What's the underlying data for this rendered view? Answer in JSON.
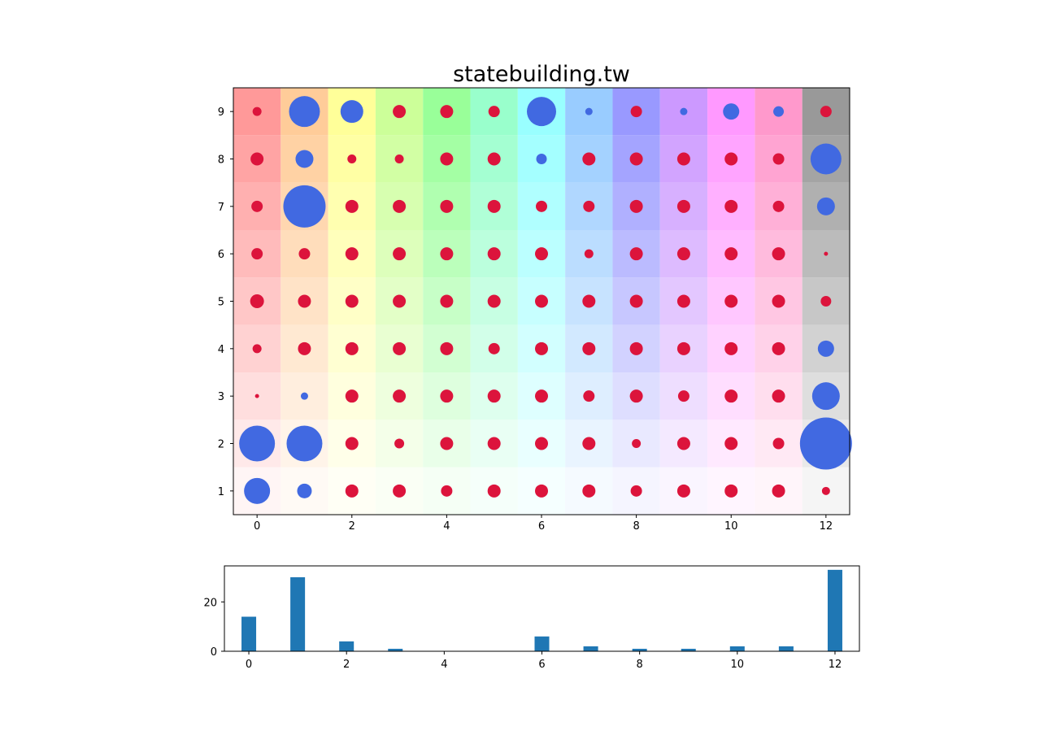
{
  "chart_data": [
    {
      "type": "scatter",
      "title": "statebuilding.tw",
      "xlabel": "",
      "ylabel": "",
      "xlim": [
        -0.5,
        12.5
      ],
      "ylim": [
        0.5,
        9.5
      ],
      "xticks": [
        0,
        2,
        4,
        6,
        8,
        10,
        12
      ],
      "yticks": [
        1,
        2,
        3,
        4,
        5,
        6,
        7,
        8,
        9
      ],
      "grid": false,
      "background_hues": [
        "#ff0000",
        "#ff7f00",
        "#ffff00",
        "#7fff00",
        "#00ff00",
        "#00ff7f",
        "#00ffff",
        "#007fff",
        "#0000ff",
        "#7f00ff",
        "#ff00ff",
        "#ff007f",
        "#000000"
      ],
      "colors": {
        "positive": "#dc143c",
        "negative": "#4169e1"
      },
      "points": [
        {
          "x": 0,
          "y": 1,
          "size": 16,
          "sign": "negative"
        },
        {
          "x": 1,
          "y": 1,
          "size": 9,
          "sign": "negative"
        },
        {
          "x": 2,
          "y": 1,
          "size": 8,
          "sign": "positive"
        },
        {
          "x": 3,
          "y": 1,
          "size": 8,
          "sign": "positive"
        },
        {
          "x": 4,
          "y": 1,
          "size": 7,
          "sign": "positive"
        },
        {
          "x": 5,
          "y": 1,
          "size": 8,
          "sign": "positive"
        },
        {
          "x": 6,
          "y": 1,
          "size": 8,
          "sign": "positive"
        },
        {
          "x": 7,
          "y": 1,
          "size": 8,
          "sign": "positive"
        },
        {
          "x": 8,
          "y": 1,
          "size": 7,
          "sign": "positive"
        },
        {
          "x": 9,
          "y": 1,
          "size": 8,
          "sign": "positive"
        },
        {
          "x": 10,
          "y": 1,
          "size": 8,
          "sign": "positive"
        },
        {
          "x": 11,
          "y": 1,
          "size": 8,
          "sign": "positive"
        },
        {
          "x": 12,
          "y": 1,
          "size": 5,
          "sign": "positive"
        },
        {
          "x": 0,
          "y": 2,
          "size": 22,
          "sign": "negative"
        },
        {
          "x": 1,
          "y": 2,
          "size": 22,
          "sign": "negative"
        },
        {
          "x": 2,
          "y": 2,
          "size": 8,
          "sign": "positive"
        },
        {
          "x": 3,
          "y": 2,
          "size": 6,
          "sign": "positive"
        },
        {
          "x": 4,
          "y": 2,
          "size": 8,
          "sign": "positive"
        },
        {
          "x": 5,
          "y": 2,
          "size": 8,
          "sign": "positive"
        },
        {
          "x": 6,
          "y": 2,
          "size": 8,
          "sign": "positive"
        },
        {
          "x": 7,
          "y": 2,
          "size": 8,
          "sign": "positive"
        },
        {
          "x": 8,
          "y": 2,
          "size": 5.5,
          "sign": "positive"
        },
        {
          "x": 9,
          "y": 2,
          "size": 8,
          "sign": "positive"
        },
        {
          "x": 10,
          "y": 2,
          "size": 8,
          "sign": "positive"
        },
        {
          "x": 11,
          "y": 2,
          "size": 7,
          "sign": "positive"
        },
        {
          "x": 12,
          "y": 2,
          "size": 32,
          "sign": "negative"
        },
        {
          "x": 0,
          "y": 3,
          "size": 2.5,
          "sign": "positive"
        },
        {
          "x": 1,
          "y": 3,
          "size": 4.5,
          "sign": "negative"
        },
        {
          "x": 2,
          "y": 3,
          "size": 8,
          "sign": "positive"
        },
        {
          "x": 3,
          "y": 3,
          "size": 8,
          "sign": "positive"
        },
        {
          "x": 4,
          "y": 3,
          "size": 8,
          "sign": "positive"
        },
        {
          "x": 5,
          "y": 3,
          "size": 8,
          "sign": "positive"
        },
        {
          "x": 6,
          "y": 3,
          "size": 8,
          "sign": "positive"
        },
        {
          "x": 7,
          "y": 3,
          "size": 7,
          "sign": "positive"
        },
        {
          "x": 8,
          "y": 3,
          "size": 8,
          "sign": "positive"
        },
        {
          "x": 9,
          "y": 3,
          "size": 7,
          "sign": "positive"
        },
        {
          "x": 10,
          "y": 3,
          "size": 8,
          "sign": "positive"
        },
        {
          "x": 11,
          "y": 3,
          "size": 8,
          "sign": "positive"
        },
        {
          "x": 12,
          "y": 3,
          "size": 17,
          "sign": "negative"
        },
        {
          "x": 0,
          "y": 4,
          "size": 5.5,
          "sign": "positive"
        },
        {
          "x": 1,
          "y": 4,
          "size": 8,
          "sign": "positive"
        },
        {
          "x": 2,
          "y": 4,
          "size": 8,
          "sign": "positive"
        },
        {
          "x": 3,
          "y": 4,
          "size": 8,
          "sign": "positive"
        },
        {
          "x": 4,
          "y": 4,
          "size": 8,
          "sign": "positive"
        },
        {
          "x": 5,
          "y": 4,
          "size": 7,
          "sign": "positive"
        },
        {
          "x": 6,
          "y": 4,
          "size": 8,
          "sign": "positive"
        },
        {
          "x": 7,
          "y": 4,
          "size": 8,
          "sign": "positive"
        },
        {
          "x": 8,
          "y": 4,
          "size": 8,
          "sign": "positive"
        },
        {
          "x": 9,
          "y": 4,
          "size": 8,
          "sign": "positive"
        },
        {
          "x": 10,
          "y": 4,
          "size": 8,
          "sign": "positive"
        },
        {
          "x": 11,
          "y": 4,
          "size": 8,
          "sign": "positive"
        },
        {
          "x": 12,
          "y": 4,
          "size": 10,
          "sign": "negative"
        },
        {
          "x": 0,
          "y": 5,
          "size": 8.5,
          "sign": "positive"
        },
        {
          "x": 1,
          "y": 5,
          "size": 8,
          "sign": "positive"
        },
        {
          "x": 2,
          "y": 5,
          "size": 8,
          "sign": "positive"
        },
        {
          "x": 3,
          "y": 5,
          "size": 8,
          "sign": "positive"
        },
        {
          "x": 4,
          "y": 5,
          "size": 8,
          "sign": "positive"
        },
        {
          "x": 5,
          "y": 5,
          "size": 8,
          "sign": "positive"
        },
        {
          "x": 6,
          "y": 5,
          "size": 8,
          "sign": "positive"
        },
        {
          "x": 7,
          "y": 5,
          "size": 8,
          "sign": "positive"
        },
        {
          "x": 8,
          "y": 5,
          "size": 8,
          "sign": "positive"
        },
        {
          "x": 9,
          "y": 5,
          "size": 8,
          "sign": "positive"
        },
        {
          "x": 10,
          "y": 5,
          "size": 8,
          "sign": "positive"
        },
        {
          "x": 11,
          "y": 5,
          "size": 8,
          "sign": "positive"
        },
        {
          "x": 12,
          "y": 5,
          "size": 6.5,
          "sign": "positive"
        },
        {
          "x": 0,
          "y": 6,
          "size": 7,
          "sign": "positive"
        },
        {
          "x": 1,
          "y": 6,
          "size": 7,
          "sign": "positive"
        },
        {
          "x": 2,
          "y": 6,
          "size": 8,
          "sign": "positive"
        },
        {
          "x": 3,
          "y": 6,
          "size": 8,
          "sign": "positive"
        },
        {
          "x": 4,
          "y": 6,
          "size": 8,
          "sign": "positive"
        },
        {
          "x": 5,
          "y": 6,
          "size": 8,
          "sign": "positive"
        },
        {
          "x": 6,
          "y": 6,
          "size": 8,
          "sign": "positive"
        },
        {
          "x": 7,
          "y": 6,
          "size": 5.5,
          "sign": "positive"
        },
        {
          "x": 8,
          "y": 6,
          "size": 8,
          "sign": "positive"
        },
        {
          "x": 9,
          "y": 6,
          "size": 8,
          "sign": "positive"
        },
        {
          "x": 10,
          "y": 6,
          "size": 8,
          "sign": "positive"
        },
        {
          "x": 11,
          "y": 6,
          "size": 8,
          "sign": "positive"
        },
        {
          "x": 12,
          "y": 6,
          "size": 2.5,
          "sign": "positive"
        },
        {
          "x": 0,
          "y": 7,
          "size": 7,
          "sign": "positive"
        },
        {
          "x": 1,
          "y": 7,
          "size": 26,
          "sign": "negative"
        },
        {
          "x": 2,
          "y": 7,
          "size": 8,
          "sign": "positive"
        },
        {
          "x": 3,
          "y": 7,
          "size": 8,
          "sign": "positive"
        },
        {
          "x": 4,
          "y": 7,
          "size": 8,
          "sign": "positive"
        },
        {
          "x": 5,
          "y": 7,
          "size": 8,
          "sign": "positive"
        },
        {
          "x": 6,
          "y": 7,
          "size": 7,
          "sign": "positive"
        },
        {
          "x": 7,
          "y": 7,
          "size": 7,
          "sign": "positive"
        },
        {
          "x": 8,
          "y": 7,
          "size": 8,
          "sign": "positive"
        },
        {
          "x": 9,
          "y": 7,
          "size": 8,
          "sign": "positive"
        },
        {
          "x": 10,
          "y": 7,
          "size": 8,
          "sign": "positive"
        },
        {
          "x": 11,
          "y": 7,
          "size": 7,
          "sign": "positive"
        },
        {
          "x": 12,
          "y": 7,
          "size": 11,
          "sign": "negative"
        },
        {
          "x": 0,
          "y": 8,
          "size": 8,
          "sign": "positive"
        },
        {
          "x": 1,
          "y": 8,
          "size": 11,
          "sign": "negative"
        },
        {
          "x": 2,
          "y": 8,
          "size": 5.5,
          "sign": "positive"
        },
        {
          "x": 3,
          "y": 8,
          "size": 5.5,
          "sign": "positive"
        },
        {
          "x": 4,
          "y": 8,
          "size": 8,
          "sign": "positive"
        },
        {
          "x": 5,
          "y": 8,
          "size": 8,
          "sign": "positive"
        },
        {
          "x": 6,
          "y": 8,
          "size": 6.5,
          "sign": "negative"
        },
        {
          "x": 7,
          "y": 8,
          "size": 8,
          "sign": "positive"
        },
        {
          "x": 8,
          "y": 8,
          "size": 8,
          "sign": "positive"
        },
        {
          "x": 9,
          "y": 8,
          "size": 8,
          "sign": "positive"
        },
        {
          "x": 10,
          "y": 8,
          "size": 8,
          "sign": "positive"
        },
        {
          "x": 11,
          "y": 8,
          "size": 7,
          "sign": "positive"
        },
        {
          "x": 12,
          "y": 8,
          "size": 19,
          "sign": "negative"
        },
        {
          "x": 0,
          "y": 9,
          "size": 5.5,
          "sign": "positive"
        },
        {
          "x": 1,
          "y": 9,
          "size": 19,
          "sign": "negative"
        },
        {
          "x": 2,
          "y": 9,
          "size": 14,
          "sign": "negative"
        },
        {
          "x": 3,
          "y": 9,
          "size": 8,
          "sign": "positive"
        },
        {
          "x": 4,
          "y": 9,
          "size": 8,
          "sign": "positive"
        },
        {
          "x": 5,
          "y": 9,
          "size": 7,
          "sign": "positive"
        },
        {
          "x": 6,
          "y": 9,
          "size": 18,
          "sign": "negative"
        },
        {
          "x": 7,
          "y": 9,
          "size": 4.5,
          "sign": "negative"
        },
        {
          "x": 8,
          "y": 9,
          "size": 7,
          "sign": "positive"
        },
        {
          "x": 9,
          "y": 9,
          "size": 4.5,
          "sign": "negative"
        },
        {
          "x": 10,
          "y": 9,
          "size": 10,
          "sign": "negative"
        },
        {
          "x": 11,
          "y": 9,
          "size": 6.5,
          "sign": "negative"
        },
        {
          "x": 12,
          "y": 9,
          "size": 7,
          "sign": "positive"
        }
      ]
    },
    {
      "type": "bar",
      "title": "",
      "xlabel": "",
      "ylabel": "",
      "x": [
        0,
        1,
        2,
        3,
        4,
        5,
        6,
        7,
        8,
        9,
        10,
        11,
        12
      ],
      "values": [
        14,
        30,
        4,
        1,
        0,
        0,
        6,
        2,
        1,
        1,
        2,
        2,
        33
      ],
      "xlim": [
        -0.5,
        12.5
      ],
      "ylim": [
        0,
        34.6
      ],
      "xticks": [
        0,
        2,
        4,
        6,
        8,
        10,
        12
      ],
      "yticks": [
        0,
        20
      ],
      "color": "#1f77b4"
    }
  ]
}
